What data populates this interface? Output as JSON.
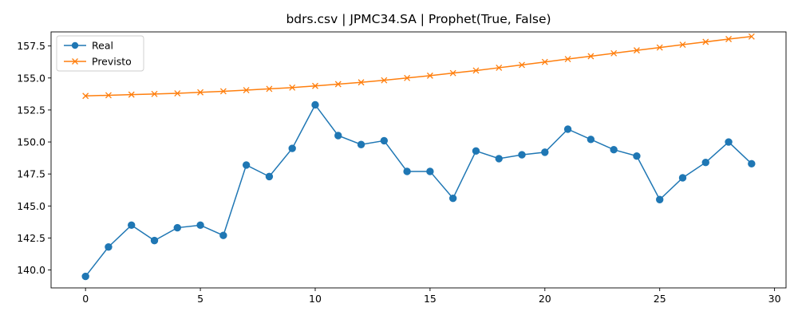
{
  "chart_data": {
    "type": "line",
    "title": "bdrs.csv | JPMC34.SA | Prophet(True, False)",
    "xlabel": "",
    "ylabel": "",
    "xlim": [
      -1.5,
      30.5
    ],
    "ylim": [
      138.6,
      158.6
    ],
    "xticks": [
      0,
      5,
      10,
      15,
      20,
      25,
      30
    ],
    "xtick_labels": [
      "0",
      "5",
      "10",
      "15",
      "20",
      "25",
      "30"
    ],
    "yticks": [
      140.0,
      142.5,
      145.0,
      147.5,
      150.0,
      152.5,
      155.0,
      157.5
    ],
    "ytick_labels": [
      "140.0",
      "142.5",
      "145.0",
      "147.5",
      "150.0",
      "152.5",
      "155.0",
      "157.5"
    ],
    "grid": false,
    "legend_position": "top-left",
    "x": [
      0,
      1,
      2,
      3,
      4,
      5,
      6,
      7,
      8,
      9,
      10,
      11,
      12,
      13,
      14,
      15,
      16,
      17,
      18,
      19,
      20,
      21,
      22,
      23,
      24,
      25,
      26,
      27,
      28,
      29
    ],
    "series": [
      {
        "name": "Real",
        "color": "#1f77b4",
        "marker": "circle",
        "values": [
          139.5,
          141.8,
          143.5,
          142.3,
          143.3,
          143.5,
          142.7,
          148.2,
          147.3,
          149.5,
          152.9,
          150.5,
          149.8,
          150.1,
          147.7,
          147.7,
          145.6,
          149.3,
          148.7,
          149.0,
          149.2,
          151.0,
          150.2,
          149.4,
          148.9,
          145.5,
          147.2,
          148.4,
          150.0,
          148.3
        ]
      },
      {
        "name": "Previsto",
        "color": "#ff7f0e",
        "marker": "x",
        "values": [
          153.6,
          153.65,
          153.7,
          153.75,
          153.8,
          153.88,
          153.96,
          154.05,
          154.15,
          154.25,
          154.38,
          154.52,
          154.66,
          154.82,
          155.0,
          155.18,
          155.38,
          155.58,
          155.8,
          156.02,
          156.25,
          156.48,
          156.7,
          156.93,
          157.16,
          157.38,
          157.6,
          157.82,
          158.04,
          158.24
        ]
      }
    ]
  }
}
